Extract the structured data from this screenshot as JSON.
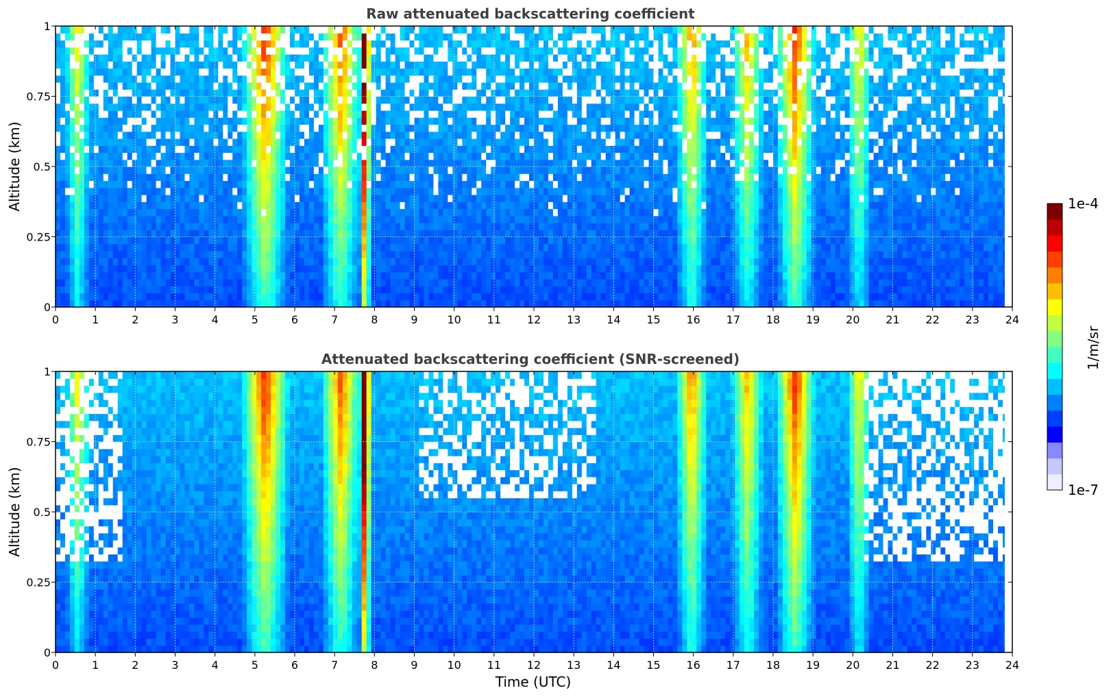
{
  "chart_data": [
    {
      "type": "heatmap",
      "title": "Raw attenuated backscattering coefficient",
      "xlabel": "",
      "ylabel": "Altitude (km)",
      "xlim": [
        0,
        24
      ],
      "ylim": [
        0,
        1
      ],
      "xticks": [
        "0",
        "1",
        "2",
        "3",
        "4",
        "5",
        "6",
        "7",
        "8",
        "9",
        "10",
        "11",
        "12",
        "13",
        "14",
        "15",
        "16",
        "17",
        "18",
        "19",
        "20",
        "21",
        "22",
        "23",
        "24"
      ],
      "yticks": [
        "0",
        "0.25",
        "0.5",
        "0.75",
        "1"
      ],
      "grid": true,
      "data_end_time": 23.8,
      "colorscale": "jet, log",
      "features": [
        {
          "x_center": 0.5,
          "width": 0.3,
          "level": 0.35
        },
        {
          "x_center": 5.2,
          "width": 0.6,
          "level": 0.55
        },
        {
          "x_center": 7.1,
          "width": 0.5,
          "level": 0.5
        },
        {
          "x_center": 7.7,
          "width": 0.15,
          "level": 0.95
        },
        {
          "x_center": 15.9,
          "width": 0.4,
          "level": 0.45
        },
        {
          "x_center": 17.3,
          "width": 0.4,
          "level": 0.4
        },
        {
          "x_center": 18.5,
          "width": 0.5,
          "level": 0.55
        },
        {
          "x_center": 20.1,
          "width": 0.3,
          "level": 0.35
        }
      ]
    },
    {
      "type": "heatmap",
      "title": "Attenuated backscattering coefficient (SNR-screened)",
      "xlabel": "Time (UTC)",
      "ylabel": "Altitude (km)",
      "xlim": [
        0,
        24
      ],
      "ylim": [
        0,
        1
      ],
      "xticks": [
        "0",
        "1",
        "2",
        "3",
        "4",
        "5",
        "6",
        "7",
        "8",
        "9",
        "10",
        "11",
        "12",
        "13",
        "14",
        "15",
        "16",
        "17",
        "18",
        "19",
        "20",
        "21",
        "22",
        "23",
        "24"
      ],
      "yticks": [
        "0",
        "0.25",
        "0.5",
        "0.75",
        "1"
      ],
      "grid": true,
      "data_end_time": 23.8,
      "colorscale": "jet, log",
      "screened_ceiling_km": 0.31,
      "features": [
        {
          "x_center": 0.5,
          "width": 0.3,
          "level": 0.35
        },
        {
          "x_center": 5.2,
          "width": 0.6,
          "level": 0.55
        },
        {
          "x_center": 7.1,
          "width": 0.5,
          "level": 0.5
        },
        {
          "x_center": 7.7,
          "width": 0.15,
          "level": 1.0
        },
        {
          "x_center": 15.9,
          "width": 0.4,
          "level": 0.45
        },
        {
          "x_center": 17.3,
          "width": 0.4,
          "level": 0.4
        },
        {
          "x_center": 18.5,
          "width": 0.5,
          "level": 0.55
        },
        {
          "x_center": 20.1,
          "width": 0.3,
          "level": 0.35
        }
      ]
    }
  ],
  "colorbar": {
    "max_label": "1e-4",
    "min_label": "1e-7",
    "label": "1/m/sr",
    "colors": [
      "#eeeeff",
      "#c8c8ff",
      "#8888ff",
      "#0000ff",
      "#0040ff",
      "#0080ff",
      "#00c0ff",
      "#00ffff",
      "#40ffc0",
      "#80ff80",
      "#c0ff40",
      "#ffff00",
      "#ffc000",
      "#ff8000",
      "#ff4000",
      "#ff0000",
      "#c00000",
      "#800000"
    ]
  }
}
